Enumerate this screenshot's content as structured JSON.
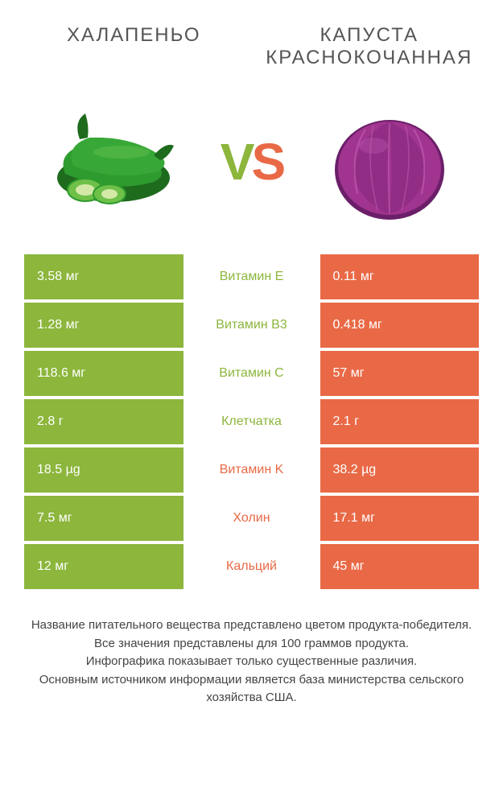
{
  "colors": {
    "left": "#8cb63c",
    "right": "#e96946",
    "vs_v": "#8cb63c",
    "vs_s": "#e96946",
    "jalapeno_body": "#2e9b2e",
    "jalapeno_dark": "#1e6b1e",
    "jalapeno_light": "#6ec048",
    "cabbage_body": "#a0348f",
    "cabbage_dark": "#6b1f68",
    "cabbage_light": "#c862b8"
  },
  "header": {
    "left": "Халапеньо",
    "right": "Капуста краснокочанная"
  },
  "vs": {
    "v": "V",
    "s": "S"
  },
  "rows": [
    {
      "left": "3.58 мг",
      "mid": "Витамин E",
      "right": "0.11 мг",
      "winner": "left"
    },
    {
      "left": "1.28 мг",
      "mid": "Витамин B3",
      "right": "0.418 мг",
      "winner": "left"
    },
    {
      "left": "118.6 мг",
      "mid": "Витамин C",
      "right": "57 мг",
      "winner": "left"
    },
    {
      "left": "2.8 г",
      "mid": "Клетчатка",
      "right": "2.1 г",
      "winner": "left"
    },
    {
      "left": "18.5 µg",
      "mid": "Витамин K",
      "right": "38.2 µg",
      "winner": "right"
    },
    {
      "left": "7.5 мг",
      "mid": "Холин",
      "right": "17.1 мг",
      "winner": "right"
    },
    {
      "left": "12 мг",
      "mid": "Кальций",
      "right": "45 мг",
      "winner": "right"
    }
  ],
  "footer": {
    "line1": "Название питательного вещества представлено цветом продукта-победителя.",
    "line2": "Все значения представлены для 100 граммов продукта.",
    "line3": "Инфографика показывает только существенные различия.",
    "line4": "Основным источником информации является база министерства сельского хозяйства США."
  }
}
